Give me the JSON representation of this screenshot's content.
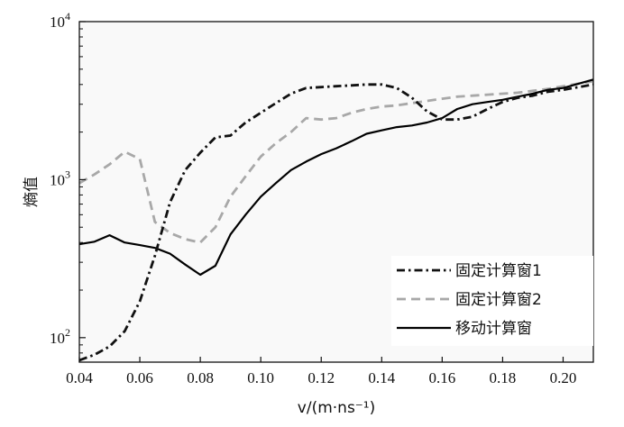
{
  "chart_data": {
    "type": "line",
    "title": "",
    "xlabel": "v/(m·ns⁻¹)",
    "ylabel": "熵值",
    "xlim": [
      0.04,
      0.21
    ],
    "ylim": [
      70,
      10000
    ],
    "yscale": "log",
    "x_ticks": [
      0.04,
      0.06,
      0.08,
      0.1,
      0.12,
      0.14,
      0.16,
      0.18,
      0.2
    ],
    "x_tick_labels": [
      "0.04",
      "0.06",
      "0.08",
      "0.10",
      "0.12",
      "0.14",
      "0.16",
      "0.18",
      "0.20"
    ],
    "y_ticks": [
      {
        "value": 100,
        "base": "10",
        "exp": "2"
      },
      {
        "value": 1000,
        "base": "10",
        "exp": "3"
      },
      {
        "value": 10000,
        "base": "10",
        "exp": "4"
      }
    ],
    "grid": false,
    "legend_position": "bottom-right",
    "series": [
      {
        "name": "固定计算窗1",
        "color": "#111111",
        "style": "dash-dot",
        "x": [
          0.04,
          0.045,
          0.05,
          0.055,
          0.06,
          0.065,
          0.07,
          0.075,
          0.08,
          0.085,
          0.09,
          0.095,
          0.1,
          0.105,
          0.11,
          0.115,
          0.12,
          0.125,
          0.13,
          0.135,
          0.14,
          0.145,
          0.15,
          0.155,
          0.16,
          0.165,
          0.17,
          0.175,
          0.18,
          0.185,
          0.19,
          0.195,
          0.2,
          0.21
        ],
        "y": [
          72,
          78,
          88,
          110,
          170,
          330,
          720,
          1150,
          1480,
          1850,
          1900,
          2300,
          2650,
          3050,
          3500,
          3800,
          3850,
          3900,
          3950,
          4000,
          4000,
          3800,
          3300,
          2700,
          2400,
          2400,
          2500,
          2800,
          3100,
          3300,
          3400,
          3600,
          3700,
          4000
        ]
      },
      {
        "name": "固定计算窗2",
        "color": "#a8a8a8",
        "style": "dashed",
        "x": [
          0.04,
          0.045,
          0.05,
          0.055,
          0.06,
          0.065,
          0.07,
          0.075,
          0.08,
          0.085,
          0.09,
          0.095,
          0.1,
          0.105,
          0.11,
          0.115,
          0.12,
          0.125,
          0.13,
          0.135,
          0.14,
          0.145,
          0.15,
          0.155,
          0.16,
          0.165,
          0.17,
          0.175,
          0.18,
          0.185,
          0.19,
          0.195,
          0.2,
          0.21
        ],
        "y": [
          950,
          1080,
          1250,
          1500,
          1350,
          540,
          460,
          420,
          400,
          500,
          780,
          1050,
          1400,
          1700,
          2000,
          2450,
          2400,
          2450,
          2650,
          2800,
          2900,
          2950,
          3050,
          3150,
          3250,
          3350,
          3400,
          3450,
          3500,
          3550,
          3650,
          3750,
          3900,
          4200
        ]
      },
      {
        "name": "移动计算窗",
        "color": "#000000",
        "style": "solid",
        "x": [
          0.04,
          0.045,
          0.05,
          0.055,
          0.06,
          0.065,
          0.07,
          0.075,
          0.08,
          0.085,
          0.09,
          0.095,
          0.1,
          0.105,
          0.11,
          0.115,
          0.12,
          0.125,
          0.13,
          0.135,
          0.14,
          0.145,
          0.15,
          0.155,
          0.16,
          0.165,
          0.17,
          0.175,
          0.18,
          0.185,
          0.19,
          0.195,
          0.2,
          0.21
        ],
        "y": [
          390,
          405,
          445,
          400,
          385,
          370,
          340,
          290,
          250,
          285,
          450,
          600,
          780,
          950,
          1150,
          1300,
          1450,
          1580,
          1750,
          1950,
          2050,
          2150,
          2200,
          2300,
          2450,
          2800,
          3000,
          3100,
          3200,
          3350,
          3500,
          3700,
          3800,
          4300
        ]
      }
    ]
  }
}
